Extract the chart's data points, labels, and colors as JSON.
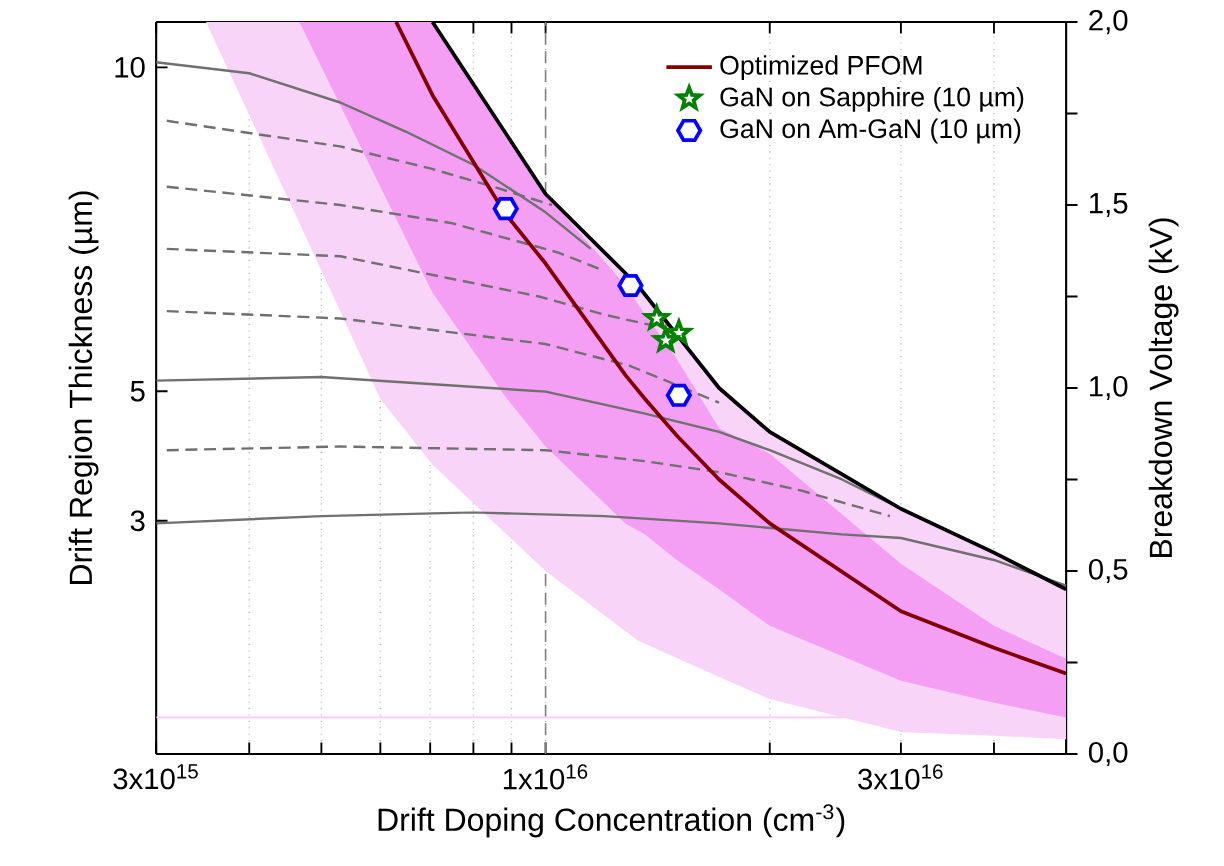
{
  "chart_data": {
    "type": "line",
    "xlabel": "Drift Doping Concentration (cm$^{-3}$)",
    "ylabel": "Drift Region Thickness (µm)",
    "y2label": "Breakdown Voltage (kV)",
    "log": "x",
    "grid": "x",
    "legend": "top right",
    "xlim": [
      3000000000000000.0,
      5e+16
    ],
    "xticks": [
      {
        "value": 3000000000000000.0,
        "label": "3x10$^{15}$"
      },
      {
        "value": 4000000000000000.0,
        "label": null
      },
      {
        "value": 5000000000000000.0,
        "label": null
      },
      {
        "value": 6000000000000000.0,
        "label": null
      },
      {
        "value": 7000000000000000.0,
        "label": null
      },
      {
        "value": 8000000000000000.0,
        "label": null
      },
      {
        "value": 9000000000000000.0,
        "label": null
      },
      {
        "value": 1e+16,
        "label": "1x10$^{16}$"
      },
      {
        "value": 2e+16,
        "label": null
      },
      {
        "value": 3e+16,
        "label": "3x10$^{16}$"
      },
      {
        "value": 4e+16,
        "label": null
      }
    ],
    "ylim": [
      -0.6,
      10.7
    ],
    "yticks": [
      10,
      5,
      3
    ],
    "y2lim": [
      0,
      2.0
    ],
    "y2ticks": [
      {
        "value": 0,
        "label": "0,0"
      },
      {
        "value": 0.25,
        "label": null
      },
      {
        "value": 0.5,
        "label": "0,5"
      },
      {
        "value": 0.75,
        "label": null
      },
      {
        "value": 1.0,
        "label": "1,0"
      },
      {
        "value": 1.25,
        "label": null
      },
      {
        "value": 1.5,
        "label": "1,5"
      },
      {
        "value": 1.75,
        "label": null
      },
      {
        "value": 2.0,
        "label": "2,0"
      }
    ],
    "ref_lines": [
      {
        "axis": "x",
        "value": 1e+16,
        "color": "#808080",
        "line_style": "dashed"
      },
      {
        "axis": "y2",
        "value": 0.1,
        "color": "#ffc8ff",
        "line_style": "solid"
      }
    ],
    "series": [
      {
        "axis": "y2",
        "color": "#707070",
        "line_style": "solid",
        "x": [
          3000000000000000.0,
          4000000000000000.0,
          5300000000000000.0,
          6500000000000000.0,
          8000000000000000.0,
          1e+16,
          1.15e+16
        ],
        "values": [
          1.89,
          1.86,
          1.78,
          1.7,
          1.61,
          1.48,
          1.38
        ]
      },
      {
        "axis": "y2",
        "color": "#707070",
        "line_style": "dashed",
        "x": [
          3100000000000000.0,
          5300000000000000.0,
          7000000000000000.0,
          8500000000000000.0,
          1.02e+16
        ],
        "values": [
          1.73,
          1.66,
          1.6,
          1.55,
          1.5
        ]
      },
      {
        "axis": "y2",
        "color": "#707070",
        "line_style": "dashed",
        "x": [
          3100000000000000.0,
          5300000000000000.0,
          7500000000000000.0,
          1.04e+16,
          1.2e+16
        ],
        "values": [
          1.55,
          1.5,
          1.45,
          1.37,
          1.32
        ]
      },
      {
        "axis": "y2",
        "color": "#707070",
        "line_style": "dashed",
        "x": [
          3100000000000000.0,
          5300000000000000.0,
          9800000000000000.0,
          1.2e+16,
          1.4e+16
        ],
        "values": [
          1.38,
          1.36,
          1.25,
          1.2,
          1.17
        ]
      },
      {
        "axis": "y2",
        "color": "#707070",
        "line_style": "dashed",
        "x": [
          3100000000000000.0,
          5300000000000000.0,
          1e+16,
          1.3e+16,
          1.71e+16
        ],
        "values": [
          1.21,
          1.19,
          1.12,
          1.06,
          0.96
        ]
      },
      {
        "axis": "y2",
        "color": "#707070",
        "line_style": "solid",
        "x": [
          3000000000000000.0,
          5000000000000000.0,
          1e+16,
          1.36e+16,
          1.71e+16,
          2e+16,
          2.5e+16,
          3e+16,
          4e+16,
          5e+16
        ],
        "values": [
          1.02,
          1.03,
          0.99,
          0.93,
          0.88,
          0.83,
          0.75,
          0.67,
          0.55,
          0.45
        ]
      },
      {
        "axis": "y2",
        "color": "#707070",
        "line_style": "dashed",
        "x": [
          3100000000000000.0,
          5300000000000000.0,
          1e+16,
          1.36e+16,
          1.71e+16,
          2.2e+16,
          2.9e+16
        ],
        "values": [
          0.83,
          0.84,
          0.83,
          0.8,
          0.77,
          0.72,
          0.65
        ]
      },
      {
        "axis": "y2",
        "color": "#707070",
        "line_style": "solid",
        "x": [
          3000000000000000.0,
          5000000000000000.0,
          8000000000000000.0,
          1.2e+16,
          1.71e+16,
          2.5e+16,
          3e+16,
          4e+16,
          5e+16
        ],
        "values": [
          0.63,
          0.65,
          0.66,
          0.65,
          0.63,
          0.6,
          0.59,
          0.53,
          0.46
        ]
      },
      {
        "axis": "y2",
        "color": "#000000",
        "line_style": "solid",
        "x": [
          3500000000000000.0,
          5300000000000000.0,
          6000000000000000.0,
          7050000000000000.0,
          1e+16,
          1.33e+16,
          1.71e+16,
          2e+16,
          3e+16,
          4e+16,
          5e+16
        ],
        "values": [
          null,
          null,
          null,
          2.0,
          1.53,
          1.28,
          1.0,
          0.88,
          0.67,
          0.55,
          0.45
        ],
        "lower": [
          2.0,
          1.21,
          0.97,
          0.79,
          0.5,
          0.31,
          0.21,
          0.15,
          0.06,
          0.05,
          0.04
        ],
        "upper": [
          2.0,
          2.0,
          2.0,
          2.0,
          1.53,
          1.28,
          1.0,
          0.88,
          0.67,
          0.55,
          0.45
        ]
      },
      {
        "axis": "y2",
        "name": "Optimized PFOM",
        "color": "#800000",
        "line_style": "solid",
        "x": [
          4670000000000000.0,
          6300000000000000.0,
          7050000000000000.0,
          8800000000000000.0,
          1e+16,
          1.28e+16,
          1.36e+16,
          1.5e+16,
          1.71e+16,
          2e+16,
          3e+16,
          4e+16,
          5e+16
        ],
        "values": [
          null,
          2.0,
          1.8,
          1.48,
          1.34,
          1.035,
          0.97,
          0.87,
          0.75,
          0.63,
          0.39,
          0.29,
          0.22
        ],
        "lower": [
          2.0,
          null,
          1.26,
          0.98,
          0.84,
          0.63,
          0.6,
          0.53,
          0.45,
          0.35,
          0.2,
          0.14,
          0.1
        ],
        "upper": [
          2.0,
          null,
          2.0,
          1.69,
          1.53,
          1.28,
          1.2,
          1.08,
          0.89,
          0.82,
          0.52,
          0.35,
          0.26
        ]
      },
      {
        "type": "scatter",
        "axis": "y2",
        "name": "GaN on Sapphire (10 µm)",
        "color": "#008000",
        "marker": "star",
        "x": [
          1.41e+16,
          1.51e+16,
          1.45e+16
        ],
        "values": [
          1.19,
          1.15,
          1.13
        ]
      },
      {
        "type": "scatter",
        "axis": "y2",
        "name": "GaN on Am-GaN (10 µm)",
        "color": "#0000ff",
        "x": [
          8840000000000000.0,
          1.3e+16,
          1.51e+16
        ],
        "values": [
          1.49,
          1.28,
          0.98
        ]
      }
    ]
  }
}
